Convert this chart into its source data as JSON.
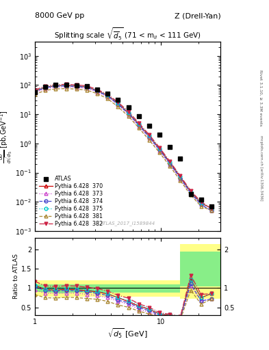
{
  "title_left": "8000 GeV pp",
  "title_right": "Z (Drell-Yan)",
  "main_title": "Splitting scale $\\sqrt{\\overline{d}_5}$ (71 < m$_{ll}$ < 111 GeV)",
  "watermark": "ATLAS_2017_I1589844",
  "right_label_top": "Rivet 3.1.10, ≥ 3.3M events",
  "right_label_bot": "mcplots.cern.ch [arXiv:1306.3436]",
  "ylabel_main": "dσ/dsqrt(d5) [pb,GeV⁻¹]",
  "ylabel_ratio": "Ratio to ATLAS",
  "xlabel": "sqrt{d_5} [GeV]",
  "xlim": [
    1,
    30
  ],
  "ylim_main": [
    0.001,
    3000
  ],
  "ylim_ratio": [
    0.3,
    2.3
  ],
  "atlas_x": [
    1.0,
    1.21,
    1.46,
    1.77,
    2.14,
    2.59,
    3.13,
    3.79,
    4.58,
    5.55,
    6.71,
    8.11,
    9.81,
    11.87,
    14.35,
    17.36,
    20.99,
    25.38
  ],
  "atlas_y": [
    58,
    88,
    100,
    100,
    97,
    92,
    72,
    52,
    32,
    17,
    8.5,
    4.0,
    2.0,
    0.75,
    0.3,
    0.018,
    0.012,
    0.007
  ],
  "py370_x": [
    1.0,
    1.21,
    1.46,
    1.77,
    2.14,
    2.59,
    3.13,
    3.79,
    4.58,
    5.55,
    6.71,
    8.11,
    9.81,
    11.87,
    14.35,
    17.36,
    20.99,
    25.38
  ],
  "py370_y": [
    62,
    85,
    95,
    97,
    93,
    86,
    65,
    44,
    24,
    11,
    4.5,
    1.8,
    0.65,
    0.22,
    0.07,
    0.022,
    0.009,
    0.006
  ],
  "py373_x": [
    1.0,
    1.21,
    1.46,
    1.77,
    2.14,
    2.59,
    3.13,
    3.79,
    4.58,
    5.55,
    6.71,
    8.11,
    9.81,
    11.87,
    14.35,
    17.36,
    20.99,
    25.38
  ],
  "py373_y": [
    55,
    76,
    86,
    87,
    84,
    77,
    58,
    39,
    21,
    9.8,
    3.8,
    1.5,
    0.55,
    0.19,
    0.06,
    0.019,
    0.008,
    0.005
  ],
  "py374_x": [
    1.0,
    1.21,
    1.46,
    1.77,
    2.14,
    2.59,
    3.13,
    3.79,
    4.58,
    5.55,
    6.71,
    8.11,
    9.81,
    11.87,
    14.35,
    17.36,
    20.99,
    25.38
  ],
  "py374_y": [
    60,
    82,
    92,
    94,
    90,
    83,
    62,
    42,
    22,
    10.5,
    4.2,
    1.65,
    0.6,
    0.2,
    0.065,
    0.02,
    0.008,
    0.005
  ],
  "py375_x": [
    1.0,
    1.21,
    1.46,
    1.77,
    2.14,
    2.59,
    3.13,
    3.79,
    4.58,
    5.55,
    6.71,
    8.11,
    9.81,
    11.87,
    14.35,
    17.36,
    20.99,
    25.38
  ],
  "py375_y": [
    63,
    86,
    97,
    99,
    95,
    88,
    66,
    45,
    24,
    11.5,
    4.7,
    1.85,
    0.67,
    0.23,
    0.073,
    0.022,
    0.009,
    0.006
  ],
  "py381_x": [
    1.0,
    1.21,
    1.46,
    1.77,
    2.14,
    2.59,
    3.13,
    3.79,
    4.58,
    5.55,
    6.71,
    8.11,
    9.81,
    11.87,
    14.35,
    17.36,
    20.99,
    25.38
  ],
  "py381_y": [
    48,
    66,
    74,
    76,
    73,
    67,
    51,
    34,
    18,
    8.5,
    3.4,
    1.3,
    0.48,
    0.165,
    0.053,
    0.017,
    0.007,
    0.005
  ],
  "py382_x": [
    1.0,
    1.21,
    1.46,
    1.77,
    2.14,
    2.59,
    3.13,
    3.79,
    4.58,
    5.55,
    6.71,
    8.11,
    9.81,
    11.87,
    14.35,
    17.36,
    20.99,
    25.38
  ],
  "py382_y": [
    68,
    93,
    104,
    106,
    102,
    94,
    71,
    48,
    26,
    12.5,
    5.0,
    2.0,
    0.72,
    0.24,
    0.077,
    0.024,
    0.01,
    0.006
  ],
  "band_x_edges": [
    1.0,
    1.21,
    1.46,
    1.77,
    2.14,
    2.59,
    3.13,
    3.79,
    4.58,
    5.55,
    6.71,
    8.11,
    9.81,
    11.87,
    14.35,
    30.0
  ],
  "band_green_lo": [
    0.9,
    0.88,
    0.87,
    0.88,
    0.88,
    0.88,
    0.88,
    0.88,
    0.88,
    0.88,
    0.88,
    0.88,
    0.88,
    0.88,
    1.05,
    1.05
  ],
  "band_green_hi": [
    1.1,
    1.1,
    1.1,
    1.1,
    1.1,
    1.1,
    1.1,
    1.1,
    1.1,
    1.1,
    1.1,
    1.1,
    1.1,
    1.1,
    1.95,
    1.95
  ],
  "band_yellow_lo": [
    0.8,
    0.77,
    0.76,
    0.77,
    0.77,
    0.77,
    0.77,
    0.77,
    0.77,
    0.77,
    0.77,
    0.77,
    0.77,
    0.77,
    0.72,
    0.72
  ],
  "band_yellow_hi": [
    1.2,
    1.2,
    1.2,
    1.2,
    1.2,
    1.2,
    1.2,
    1.2,
    1.2,
    1.2,
    1.2,
    1.2,
    1.2,
    1.2,
    2.15,
    2.15
  ],
  "color_370": "#CC0000",
  "color_373": "#CC44CC",
  "color_374": "#4444CC",
  "color_375": "#00CCCC",
  "color_381": "#AA8833",
  "color_382": "#CC2244"
}
